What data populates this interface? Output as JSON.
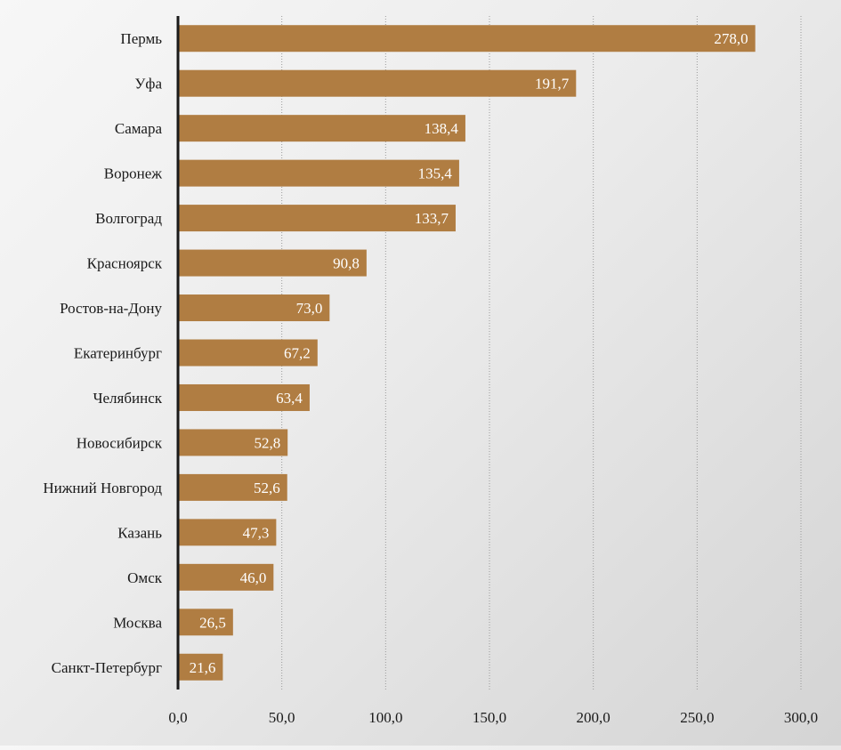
{
  "chart_data": {
    "type": "bar",
    "orientation": "horizontal",
    "title": "",
    "xlabel": "",
    "ylabel": "",
    "categories": [
      "Пермь",
      "Уфа",
      "Самара",
      "Воронеж",
      "Волгоград",
      "Красноярск",
      "Ростов-на-Дону",
      "Екатеринбург",
      "Челябинск",
      "Новосибирск",
      "Нижний Новгород",
      "Казань",
      "Омск",
      "Москва",
      "Санкт-Петербург"
    ],
    "values": [
      278.0,
      191.7,
      138.4,
      135.4,
      133.7,
      90.8,
      73.0,
      67.2,
      63.4,
      52.8,
      52.6,
      47.3,
      46.0,
      26.5,
      21.6
    ],
    "data_labels": [
      "278,0",
      "191,7",
      "138,4",
      "135,4",
      "133,7",
      "90,8",
      "73,0",
      "67,2",
      "63,4",
      "52,8",
      "52,6",
      "47,3",
      "46,0",
      "26,5",
      "21,6"
    ],
    "xlim": [
      0,
      300
    ],
    "xticks": [
      0,
      50,
      100,
      150,
      200,
      250,
      300
    ],
    "xtick_labels": [
      "0,0",
      "50,0",
      "100,0",
      "150,0",
      "200,0",
      "250,0",
      "300,0"
    ],
    "grid": true,
    "legend": "none",
    "bar_color": "#b07d42"
  }
}
